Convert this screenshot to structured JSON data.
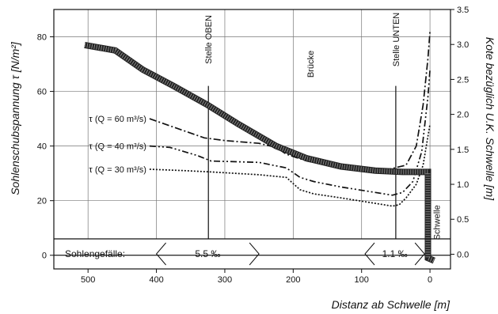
{
  "chart_data": {
    "type": "line",
    "xlabel": "Distanz ab Schwelle  [m]",
    "ylabel_left": "Sohlenschubspannung τ  [N/m²]",
    "ylabel_right": "Kote bezüglich U.K. Schwelle  [m]",
    "xlim": [
      550,
      -30
    ],
    "ylim_left": [
      -5,
      90
    ],
    "ylim_right": [
      -0.21,
      3.5
    ],
    "x_ticks": [
      500,
      400,
      300,
      200,
      100,
      0
    ],
    "x_tick_labels": [
      "500",
      "400",
      "300",
      "200",
      "100",
      "0"
    ],
    "y_ticks_left": [
      0,
      20,
      40,
      60,
      80
    ],
    "y_tick_labels_left": [
      "0",
      "20",
      "40",
      "60",
      "80"
    ],
    "y_ticks_right": [
      0.0,
      0.5,
      1.0,
      1.5,
      2.0,
      2.5,
      3.0,
      3.5
    ],
    "y_tick_labels_right": [
      "0.0",
      "0.5",
      "1.0",
      "1.5",
      "2.0",
      "2.5",
      "3.0",
      "3.5"
    ],
    "series": [
      {
        "name": "τ (Q = 60 m³/s)",
        "style": "dashdot",
        "label_x": 410,
        "points": [
          [
            410,
            50.0
          ],
          [
            330,
            43
          ],
          [
            300,
            42
          ],
          [
            250,
            41
          ],
          [
            225,
            39.5
          ],
          [
            210,
            37
          ],
          [
            180,
            34.5
          ],
          [
            150,
            33
          ],
          [
            100,
            31.8
          ],
          [
            60,
            31.5
          ],
          [
            35,
            33
          ],
          [
            20,
            40
          ],
          [
            10,
            55
          ],
          [
            3,
            72
          ],
          [
            0,
            82
          ]
        ]
      },
      {
        "name": "τ (Q = 40 m³/s)",
        "style": "dashdotdot",
        "label_x": 410,
        "points": [
          [
            410,
            40.0
          ],
          [
            380,
            39.5
          ],
          [
            340,
            36.5
          ],
          [
            320,
            34.5
          ],
          [
            250,
            34
          ],
          [
            210,
            32
          ],
          [
            190,
            28.5
          ],
          [
            170,
            27
          ],
          [
            130,
            25
          ],
          [
            80,
            23
          ],
          [
            55,
            22
          ],
          [
            40,
            23
          ],
          [
            25,
            27
          ],
          [
            12,
            38
          ],
          [
            3,
            58
          ],
          [
            0,
            68
          ]
        ]
      },
      {
        "name": "τ (Q = 30 m³/s)",
        "style": "dotted",
        "label_x": 410,
        "points": [
          [
            410,
            31.5
          ],
          [
            360,
            31
          ],
          [
            320,
            30.5
          ],
          [
            250,
            29.5
          ],
          [
            210,
            28.5
          ],
          [
            190,
            24
          ],
          [
            170,
            22.5
          ],
          [
            130,
            21
          ],
          [
            80,
            19
          ],
          [
            55,
            18
          ],
          [
            45,
            18.5
          ],
          [
            35,
            21
          ],
          [
            20,
            26
          ],
          [
            10,
            33
          ],
          [
            4,
            42
          ],
          [
            0,
            48
          ]
        ]
      }
    ],
    "bed_profile": {
      "name": "Sohle",
      "points": [
        [
          505,
          77
        ],
        [
          460,
          75
        ],
        [
          420,
          68
        ],
        [
          375,
          62
        ],
        [
          325,
          55
        ],
        [
          280,
          48
        ],
        [
          225,
          40
        ],
        [
          180,
          35.5
        ],
        [
          130,
          32.5
        ],
        [
          80,
          31
        ],
        [
          40,
          30.5
        ],
        [
          12,
          30.5
        ],
        [
          3,
          30.5
        ],
        [
          3,
          -1
        ],
        [
          -6,
          -2
        ]
      ]
    },
    "vertical_markers": [
      {
        "x": 324,
        "label": "Stelle OBEN"
      },
      {
        "x": 50,
        "label": "Stelle UNTEN"
      }
    ],
    "annotations": [
      {
        "x": 175,
        "y": 70,
        "text": "Brücke",
        "rotate": true
      },
      {
        "x": -10,
        "y": 12,
        "text": "Schwelle",
        "rotate": true
      }
    ],
    "slope_strip": {
      "label": "Sohlengefälle:",
      "segments": [
        {
          "text": "5.5 ‰",
          "x_from": 400,
          "x_to": 250
        },
        {
          "text": "1.1 ‰",
          "x_from": 95,
          "x_to": 8
        }
      ]
    },
    "grid": "vertical-and-horizontal",
    "legend": "inline-left"
  }
}
